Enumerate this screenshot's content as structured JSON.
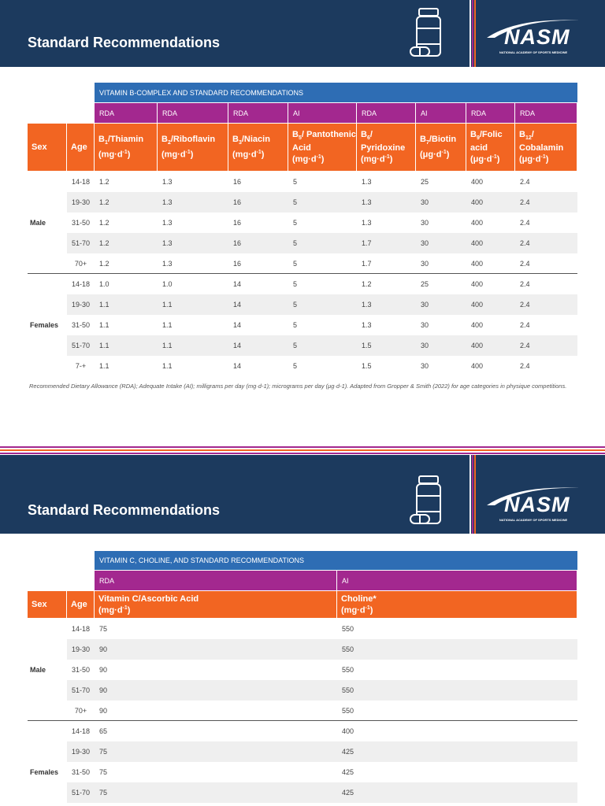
{
  "pages": [
    {
      "header": {
        "title": "Standard Recommendations",
        "logo": {
          "name": "NASM",
          "tagline": "NATIONAL ACADEMY OF SPORTS MEDICINE"
        }
      },
      "table": {
        "title": "VITAMIN B-COMPLEX AND STANDARD RECOMMENDATIONS",
        "sex_header": "Sex",
        "age_header": "Age",
        "types": [
          "RDA",
          "RDA",
          "RDA",
          "AI",
          "RDA",
          "AI",
          "RDA",
          "RDA"
        ],
        "columns": [
          {
            "label": "B",
            "sub": "1",
            "name": "/Thiamin",
            "unit": "(mg·d",
            "sup": "-1",
            "end": ")"
          },
          {
            "label": "B",
            "sub": "2",
            "name": "/Riboflavin",
            "unit": "(mg·d",
            "sup": "-1",
            "end": ")"
          },
          {
            "label": "B",
            "sub": "3",
            "name": "/Niacin",
            "unit": "(mg·d",
            "sup": "-1",
            "end": ")"
          },
          {
            "label": "B",
            "sub": "5",
            "name": "/ Pantothenic Acid",
            "unit": "(mg·d",
            "sup": "-1",
            "end": ")"
          },
          {
            "label": "B",
            "sub": "6",
            "name": "/ Pyridoxine",
            "unit": "(mg·d",
            "sup": "-1",
            "end": ")"
          },
          {
            "label": "B",
            "sub": "7",
            "name": "/Biotin",
            "unit": "(μg·d",
            "sup": "-1",
            "end": ")"
          },
          {
            "label": "B",
            "sub": "9",
            "name": "/Folic acid",
            "unit": "(μg·d",
            "sup": "-1",
            "end": ")"
          },
          {
            "label": "B",
            "sub": "12",
            "name": "/ Cobalamin",
            "unit": "(μg·d",
            "sup": "-1",
            "end": ")"
          }
        ],
        "groups": [
          {
            "sex": "Male",
            "rows": [
              {
                "age": "14-18",
                "cells": [
                  "1.2",
                  "1.3",
                  "16",
                  "5",
                  "1.3",
                  "25",
                  "400",
                  "2.4"
                ]
              },
              {
                "age": "19-30",
                "cells": [
                  "1.2",
                  "1.3",
                  "16",
                  "5",
                  "1.3",
                  "30",
                  "400",
                  "2.4"
                ]
              },
              {
                "age": "31-50",
                "cells": [
                  "1.2",
                  "1.3",
                  "16",
                  "5",
                  "1.3",
                  "30",
                  "400",
                  "2.4"
                ]
              },
              {
                "age": "51-70",
                "cells": [
                  "1.2",
                  "1.3",
                  "16",
                  "5",
                  "1.7",
                  "30",
                  "400",
                  "2.4"
                ]
              },
              {
                "age": "70+",
                "cells": [
                  "1.2",
                  "1.3",
                  "16",
                  "5",
                  "1.7",
                  "30",
                  "400",
                  "2.4"
                ]
              }
            ]
          },
          {
            "sex": "Females",
            "rows": [
              {
                "age": "14-18",
                "cells": [
                  "1.0",
                  "1.0",
                  "14",
                  "5",
                  "1.2",
                  "25",
                  "400",
                  "2.4"
                ]
              },
              {
                "age": "19-30",
                "cells": [
                  "1.1",
                  "1.1",
                  "14",
                  "5",
                  "1.3",
                  "30",
                  "400",
                  "2.4"
                ]
              },
              {
                "age": "31-50",
                "cells": [
                  "1.1",
                  "1.1",
                  "14",
                  "5",
                  "1.3",
                  "30",
                  "400",
                  "2.4"
                ]
              },
              {
                "age": "51-70",
                "cells": [
                  "1.1",
                  "1.1",
                  "14",
                  "5",
                  "1.5",
                  "30",
                  "400",
                  "2.4"
                ]
              },
              {
                "age": "7-+",
                "cells": [
                  "1.1",
                  "1.1",
                  "14",
                  "5",
                  "1.5",
                  "30",
                  "400",
                  "2.4"
                ]
              }
            ]
          }
        ]
      },
      "footnote": "Recommended Dietary Allowance (RDA); Adequate Intake (AI); milligrams per day (mg·d-1); micrograms per day (μg·d-1). Adapted from Gropper & Smith (2022) for age categories in physique competitions."
    },
    {
      "header": {
        "title": "Standard Recommendations",
        "logo": {
          "name": "NASM",
          "tagline": "NATIONAL ACADEMY OF SPORTS MEDICINE"
        }
      },
      "table": {
        "title": "VITAMIN C, CHOLINE, AND STANDARD RECOMMENDATIONS",
        "sex_header": "Sex",
        "age_header": "Age",
        "types": [
          "RDA",
          "AI"
        ],
        "columns": [
          {
            "name": "Vitamin C/Ascorbic Acid",
            "unit": "(mg·d",
            "sup": "-1",
            "end": ")"
          },
          {
            "name": "Choline*",
            "unit": "(mg·d",
            "sup": "-1",
            "end": ")"
          }
        ],
        "groups": [
          {
            "sex": "Male",
            "rows": [
              {
                "age": "14-18",
                "cells": [
                  "75",
                  "550"
                ]
              },
              {
                "age": "19-30",
                "cells": [
                  "90",
                  "550"
                ]
              },
              {
                "age": "31-50",
                "cells": [
                  "90",
                  "550"
                ]
              },
              {
                "age": "51-70",
                "cells": [
                  "90",
                  "550"
                ]
              },
              {
                "age": "70+",
                "cells": [
                  "90",
                  "550"
                ]
              }
            ]
          },
          {
            "sex": "Females",
            "rows": [
              {
                "age": "14-18",
                "cells": [
                  "65",
                  "400"
                ]
              },
              {
                "age": "19-30",
                "cells": [
                  "75",
                  "425"
                ]
              },
              {
                "age": "31-50",
                "cells": [
                  "75",
                  "425"
                ]
              },
              {
                "age": "51-70",
                "cells": [
                  "75",
                  "425"
                ]
              }
            ]
          }
        ]
      }
    }
  ]
}
